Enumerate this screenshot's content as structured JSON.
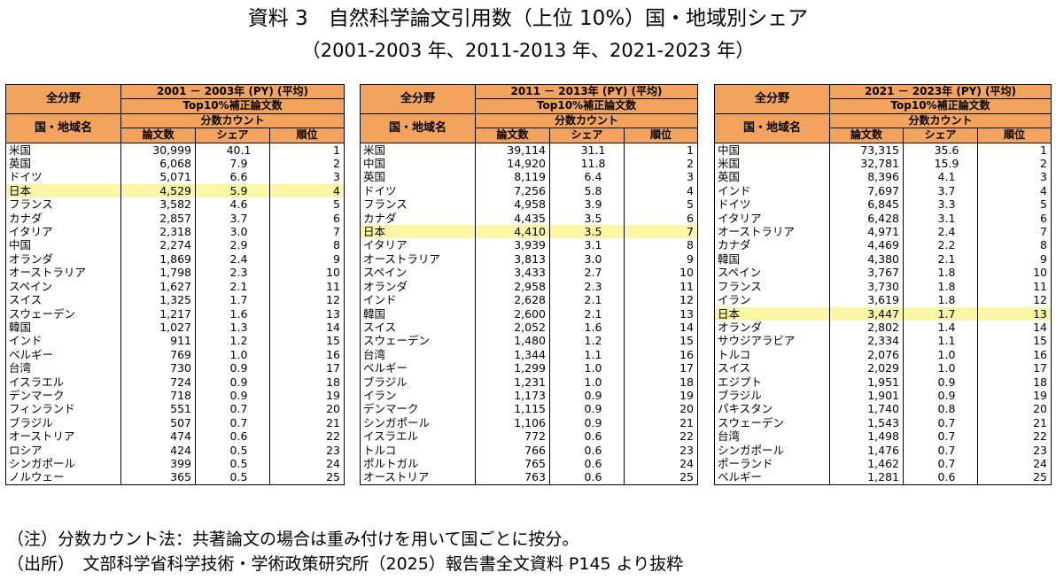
{
  "title": "資料 3　自然科学論文引用数（上位 10%）国・地域別シェア",
  "subtitle": "（2001-2003 年、2011-2013 年、2021-2023 年）",
  "tables": [
    {
      "corner_top": "全分野",
      "corner_bottom": "国・地域名",
      "period": "2001 － 2003年 (PY) (平均)",
      "metric": "Top10%補正論文数",
      "method": "分数カウント",
      "col_papers": "論文数",
      "col_share": "シェア",
      "col_rank": "順位",
      "highlight_rank": 4,
      "rows": [
        {
          "name": "米国",
          "papers": "30,999",
          "share": "40.1",
          "rank": "1"
        },
        {
          "name": "英国",
          "papers": "6,068",
          "share": "7.9",
          "rank": "2"
        },
        {
          "name": "ドイツ",
          "papers": "5,071",
          "share": "6.6",
          "rank": "3"
        },
        {
          "name": "日本",
          "papers": "4,529",
          "share": "5.9",
          "rank": "4"
        },
        {
          "name": "フランス",
          "papers": "3,582",
          "share": "4.6",
          "rank": "5"
        },
        {
          "name": "カナダ",
          "papers": "2,857",
          "share": "3.7",
          "rank": "6"
        },
        {
          "name": "イタリア",
          "papers": "2,318",
          "share": "3.0",
          "rank": "7"
        },
        {
          "name": "中国",
          "papers": "2,274",
          "share": "2.9",
          "rank": "8"
        },
        {
          "name": "オランダ",
          "papers": "1,869",
          "share": "2.4",
          "rank": "9"
        },
        {
          "name": "オーストラリア",
          "papers": "1,798",
          "share": "2.3",
          "rank": "10"
        },
        {
          "name": "スペイン",
          "papers": "1,627",
          "share": "2.1",
          "rank": "11"
        },
        {
          "name": "スイス",
          "papers": "1,325",
          "share": "1.7",
          "rank": "12"
        },
        {
          "name": "スウェーデン",
          "papers": "1,217",
          "share": "1.6",
          "rank": "13"
        },
        {
          "name": "韓国",
          "papers": "1,027",
          "share": "1.3",
          "rank": "14"
        },
        {
          "name": "インド",
          "papers": "911",
          "share": "1.2",
          "rank": "15"
        },
        {
          "name": "ベルギー",
          "papers": "769",
          "share": "1.0",
          "rank": "16"
        },
        {
          "name": "台湾",
          "papers": "730",
          "share": "0.9",
          "rank": "17"
        },
        {
          "name": "イスラエル",
          "papers": "724",
          "share": "0.9",
          "rank": "18"
        },
        {
          "name": "デンマーク",
          "papers": "718",
          "share": "0.9",
          "rank": "19"
        },
        {
          "name": "フィンランド",
          "papers": "551",
          "share": "0.7",
          "rank": "20"
        },
        {
          "name": "ブラジル",
          "papers": "507",
          "share": "0.7",
          "rank": "21"
        },
        {
          "name": "オーストリア",
          "papers": "474",
          "share": "0.6",
          "rank": "22"
        },
        {
          "name": "ロシア",
          "papers": "424",
          "share": "0.5",
          "rank": "23"
        },
        {
          "name": "シンガポール",
          "papers": "399",
          "share": "0.5",
          "rank": "24"
        },
        {
          "name": "ノルウェー",
          "papers": "365",
          "share": "0.5",
          "rank": "25"
        }
      ]
    },
    {
      "corner_top": "全分野",
      "corner_bottom": "国・地域名",
      "period": "2011 － 2013年 (PY) (平均)",
      "metric": "Top10%補正論文数",
      "method": "分数カウント",
      "col_papers": "論文数",
      "col_share": "シェア",
      "col_rank": "順位",
      "highlight_rank": 7,
      "rows": [
        {
          "name": "米国",
          "papers": "39,114",
          "share": "31.1",
          "rank": "1"
        },
        {
          "name": "中国",
          "papers": "14,920",
          "share": "11.8",
          "rank": "2"
        },
        {
          "name": "英国",
          "papers": "8,119",
          "share": "6.4",
          "rank": "3"
        },
        {
          "name": "ドイツ",
          "papers": "7,256",
          "share": "5.8",
          "rank": "4"
        },
        {
          "name": "フランス",
          "papers": "4,958",
          "share": "3.9",
          "rank": "5"
        },
        {
          "name": "カナダ",
          "papers": "4,435",
          "share": "3.5",
          "rank": "6"
        },
        {
          "name": "日本",
          "papers": "4,410",
          "share": "3.5",
          "rank": "7"
        },
        {
          "name": "イタリア",
          "papers": "3,939",
          "share": "3.1",
          "rank": "8"
        },
        {
          "name": "オーストラリア",
          "papers": "3,813",
          "share": "3.0",
          "rank": "9"
        },
        {
          "name": "スペイン",
          "papers": "3,433",
          "share": "2.7",
          "rank": "10"
        },
        {
          "name": "オランダ",
          "papers": "2,958",
          "share": "2.3",
          "rank": "11"
        },
        {
          "name": "インド",
          "papers": "2,628",
          "share": "2.1",
          "rank": "12"
        },
        {
          "name": "韓国",
          "papers": "2,600",
          "share": "2.1",
          "rank": "13"
        },
        {
          "name": "スイス",
          "papers": "2,052",
          "share": "1.6",
          "rank": "14"
        },
        {
          "name": "スウェーデン",
          "papers": "1,480",
          "share": "1.2",
          "rank": "15"
        },
        {
          "name": "台湾",
          "papers": "1,344",
          "share": "1.1",
          "rank": "16"
        },
        {
          "name": "ベルギー",
          "papers": "1,299",
          "share": "1.0",
          "rank": "17"
        },
        {
          "name": "ブラジル",
          "papers": "1,231",
          "share": "1.0",
          "rank": "18"
        },
        {
          "name": "イラン",
          "papers": "1,173",
          "share": "0.9",
          "rank": "19"
        },
        {
          "name": "デンマーク",
          "papers": "1,115",
          "share": "0.9",
          "rank": "20"
        },
        {
          "name": "シンガポール",
          "papers": "1,106",
          "share": "0.9",
          "rank": "21"
        },
        {
          "name": "イスラエル",
          "papers": "772",
          "share": "0.6",
          "rank": "22"
        },
        {
          "name": "トルコ",
          "papers": "766",
          "share": "0.6",
          "rank": "23"
        },
        {
          "name": "ポルトガル",
          "papers": "765",
          "share": "0.6",
          "rank": "24"
        },
        {
          "name": "オーストリア",
          "papers": "763",
          "share": "0.6",
          "rank": "25"
        }
      ]
    },
    {
      "corner_top": "全分野",
      "corner_bottom": "国・地域名",
      "period": "2021 － 2023年 (PY) (平均)",
      "metric": "Top10%補正論文数",
      "method": "分数カウント",
      "col_papers": "論文数",
      "col_share": "シェア",
      "col_rank": "順位",
      "highlight_rank": 13,
      "rows": [
        {
          "name": "中国",
          "papers": "73,315",
          "share": "35.6",
          "rank": "1"
        },
        {
          "name": "米国",
          "papers": "32,781",
          "share": "15.9",
          "rank": "2"
        },
        {
          "name": "英国",
          "papers": "8,396",
          "share": "4.1",
          "rank": "3"
        },
        {
          "name": "インド",
          "papers": "7,697",
          "share": "3.7",
          "rank": "4"
        },
        {
          "name": "ドイツ",
          "papers": "6,845",
          "share": "3.3",
          "rank": "5"
        },
        {
          "name": "イタリア",
          "papers": "6,428",
          "share": "3.1",
          "rank": "6"
        },
        {
          "name": "オーストラリア",
          "papers": "4,971",
          "share": "2.4",
          "rank": "7"
        },
        {
          "name": "カナダ",
          "papers": "4,469",
          "share": "2.2",
          "rank": "8"
        },
        {
          "name": "韓国",
          "papers": "4,380",
          "share": "2.1",
          "rank": "9"
        },
        {
          "name": "スペイン",
          "papers": "3,767",
          "share": "1.8",
          "rank": "10"
        },
        {
          "name": "フランス",
          "papers": "3,730",
          "share": "1.8",
          "rank": "11"
        },
        {
          "name": "イラン",
          "papers": "3,619",
          "share": "1.8",
          "rank": "12"
        },
        {
          "name": "日本",
          "papers": "3,447",
          "share": "1.7",
          "rank": "13"
        },
        {
          "name": "オランダ",
          "papers": "2,802",
          "share": "1.4",
          "rank": "14"
        },
        {
          "name": "サウジアラビア",
          "papers": "2,334",
          "share": "1.1",
          "rank": "15"
        },
        {
          "name": "トルコ",
          "papers": "2,076",
          "share": "1.0",
          "rank": "16"
        },
        {
          "name": "スイス",
          "papers": "2,029",
          "share": "1.0",
          "rank": "17"
        },
        {
          "name": "エジプト",
          "papers": "1,951",
          "share": "0.9",
          "rank": "18"
        },
        {
          "name": "ブラジル",
          "papers": "1,901",
          "share": "0.9",
          "rank": "19"
        },
        {
          "name": "パキスタン",
          "papers": "1,740",
          "share": "0.8",
          "rank": "20"
        },
        {
          "name": "スウェーデン",
          "papers": "1,543",
          "share": "0.7",
          "rank": "21"
        },
        {
          "name": "台湾",
          "papers": "1,498",
          "share": "0.7",
          "rank": "22"
        },
        {
          "name": "シンガポール",
          "papers": "1,476",
          "share": "0.7",
          "rank": "23"
        },
        {
          "name": "ポーランド",
          "papers": "1,462",
          "share": "0.7",
          "rank": "24"
        },
        {
          "name": "ベルギー",
          "papers": "1,281",
          "share": "0.6",
          "rank": "25"
        }
      ]
    }
  ],
  "notes": {
    "note": "（注）分数カウント法：共著論文の場合は重み付けを用いて国ごとに按分。",
    "source": "（出所）　文部科学省科学技術・学術政策研究所（2025）報告書全文資料 P145 より抜粋"
  },
  "colors": {
    "header_bg": "#f2a45e",
    "highlight_bg": "#fbf6a6",
    "border": "#000000"
  }
}
